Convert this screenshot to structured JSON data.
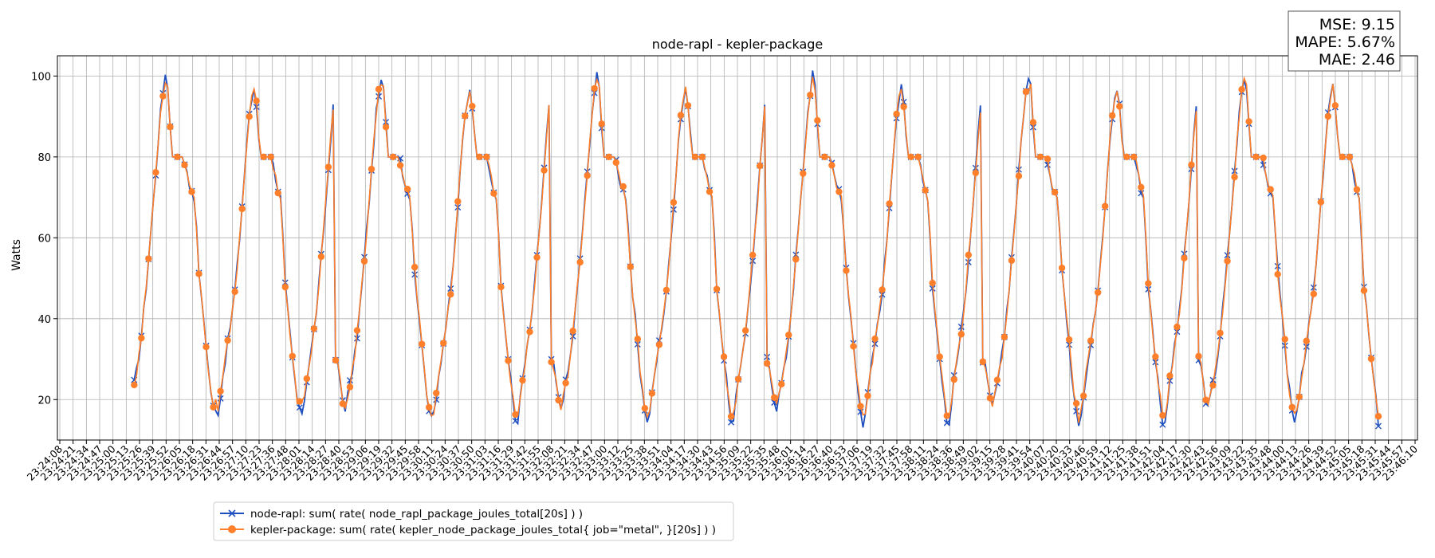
{
  "chart_data": {
    "type": "line",
    "title": "node-rapl - kepler-package",
    "xlabel": "",
    "ylabel": "Watts",
    "ylim": [
      10,
      105
    ],
    "yticks": [
      20,
      40,
      60,
      80,
      100
    ],
    "grid": true,
    "legend_position": "lower-left (below axes)",
    "x_tick_labels": [
      "23:24:08",
      "23:24:21",
      "23:24:34",
      "23:24:47",
      "23:25:00",
      "23:25:13",
      "23:25:26",
      "23:25:39",
      "23:25:52",
      "23:26:05",
      "23:26:18",
      "23:26:31",
      "23:26:44",
      "23:26:57",
      "23:27:10",
      "23:27:23",
      "23:27:36",
      "23:27:48",
      "23:28:01",
      "23:28:14",
      "23:28:27",
      "23:28:40",
      "23:28:53",
      "23:29:06",
      "23:29:19",
      "23:29:32",
      "23:29:45",
      "23:29:58",
      "23:30:11",
      "23:30:24",
      "23:30:37",
      "23:30:50",
      "23:31:03",
      "23:31:16",
      "23:31:29",
      "23:31:42",
      "23:31:55",
      "23:32:08",
      "23:32:21",
      "23:32:34",
      "23:32:47",
      "23:33:00",
      "23:33:12",
      "23:33:25",
      "23:33:38",
      "23:33:51",
      "23:34:04",
      "23:34:17",
      "23:34:30",
      "23:34:43",
      "23:34:56",
      "23:35:09",
      "23:35:22",
      "23:35:35",
      "23:35:48",
      "23:36:01",
      "23:36:14",
      "23:36:27",
      "23:36:40",
      "23:36:53",
      "23:37:06",
      "23:37:19",
      "23:37:32",
      "23:37:45",
      "23:37:58",
      "23:38:11",
      "23:38:24",
      "23:38:36",
      "23:38:49",
      "23:39:02",
      "23:39:15",
      "23:39:28",
      "23:39:41",
      "23:39:54",
      "23:40:07",
      "23:40:20",
      "23:40:33",
      "23:40:46",
      "23:40:59",
      "23:41:12",
      "23:41:25",
      "23:41:38",
      "23:41:51",
      "23:42:04",
      "23:42:17",
      "23:42:30",
      "23:42:43",
      "23:42:56",
      "23:43:09",
      "23:43:22",
      "23:43:35",
      "23:43:48",
      "23:44:00",
      "23:44:13",
      "23:44:26",
      "23:44:39",
      "23:44:52",
      "23:45:05",
      "23:45:18",
      "23:45:31",
      "23:45:44",
      "23:45:57",
      "23:46:10"
    ],
    "cycle_template": [
      30,
      28,
      24,
      20,
      18,
      21,
      24,
      27,
      31,
      36,
      42,
      48,
      55,
      62,
      69,
      76,
      84,
      91,
      96,
      100,
      97,
      88,
      80,
      80,
      80,
      80,
      80,
      79,
      76,
      73,
      72,
      70,
      62,
      52,
      45,
      40,
      34,
      27,
      22,
      18,
      16,
      17,
      21,
      26,
      30,
      34,
      38,
      42,
      47,
      53,
      60,
      68,
      76,
      84,
      90,
      94,
      97,
      93,
      85,
      80,
      80,
      80,
      80,
      80,
      78,
      75,
      72,
      70,
      60,
      48,
      42,
      36,
      30,
      25,
      20,
      16,
      16,
      20,
      25,
      29,
      33,
      37,
      42,
      48,
      55,
      62,
      69,
      77,
      85,
      92
    ],
    "series": [
      {
        "name": "node-rapl: sum( rate( node_rapl_package_joules_total[20s] ) )",
        "color": "#1f4fbf",
        "marker": "x",
        "start_index": 5,
        "point_count": 520,
        "peaks": [
          101,
          98,
          100,
          101,
          99,
          99
        ],
        "troughs": [
          17,
          15,
          14,
          14,
          14,
          14,
          24
        ]
      },
      {
        "name": "kepler-package: sum( rate( kepler_node_package_joules_total{ job=\"metal\", }[20s] ) )",
        "color": "#ff7f2a",
        "marker": "o",
        "start_index": 5,
        "point_count": 520,
        "peaks": [
          99,
          97,
          98,
          100,
          97,
          99
        ],
        "troughs": [
          19,
          17,
          16,
          16,
          15,
          16,
          25
        ]
      }
    ]
  },
  "metrics": {
    "mse": "MSE: 9.15",
    "mape": "MAPE: 5.67%",
    "mae": "MAE: 2.46"
  }
}
